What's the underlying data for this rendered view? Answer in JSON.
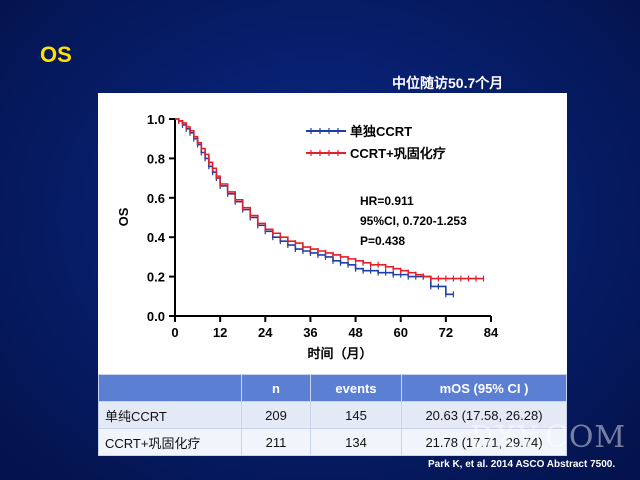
{
  "slide": {
    "title": "OS",
    "subtitle": "中位随访50.7个月",
    "footer": "Park K, et al. 2014 ASCO Abstract 7500.",
    "watermark": "DXY.COM"
  },
  "table": {
    "headers": [
      "",
      "n",
      "events",
      "mOS (95% CI )"
    ],
    "rows": [
      [
        "单纯CCRT",
        "209",
        "145",
        "20.63 (17.58, 26.28)"
      ],
      [
        "CCRT+巩固化疗",
        "211",
        "134",
        "21.78 (17.71, 29.74)"
      ]
    ]
  },
  "chart_data": {
    "type": "line",
    "title": "",
    "xlabel": "时间（月）",
    "ylabel": "OS",
    "xlim": [
      0,
      84
    ],
    "ylim": [
      0,
      1.0
    ],
    "xticks": [
      0,
      12,
      24,
      36,
      48,
      60,
      72,
      84
    ],
    "yticks": [
      "0.0",
      "0.2",
      "0.4",
      "0.6",
      "0.8",
      "1.0"
    ],
    "legend_position": "top-center",
    "annotations": [
      "HR=0.911",
      "95%CI, 0.720-1.253",
      "P=0.438"
    ],
    "series": [
      {
        "name": "单独CCRT",
        "color": "#1f3fa8",
        "x": [
          0,
          1,
          2,
          3,
          4,
          5,
          6,
          7,
          8,
          9,
          10,
          11,
          12,
          14,
          16,
          18,
          20,
          22,
          24,
          26,
          28,
          30,
          32,
          34,
          36,
          38,
          40,
          42,
          44,
          46,
          48,
          50,
          52,
          54,
          56,
          58,
          60,
          62,
          64,
          66,
          68,
          70,
          72,
          74
        ],
        "y": [
          1.0,
          0.99,
          0.97,
          0.95,
          0.93,
          0.9,
          0.87,
          0.83,
          0.8,
          0.76,
          0.73,
          0.7,
          0.66,
          0.62,
          0.58,
          0.54,
          0.5,
          0.46,
          0.43,
          0.4,
          0.38,
          0.36,
          0.34,
          0.33,
          0.32,
          0.31,
          0.3,
          0.28,
          0.27,
          0.26,
          0.24,
          0.23,
          0.23,
          0.22,
          0.22,
          0.21,
          0.21,
          0.2,
          0.2,
          0.2,
          0.15,
          0.15,
          0.11,
          0.11
        ]
      },
      {
        "name": "CCRT+巩固化疗",
        "color": "#e0202a",
        "x": [
          0,
          1,
          2,
          3,
          4,
          5,
          6,
          7,
          8,
          9,
          10,
          11,
          12,
          14,
          16,
          18,
          20,
          22,
          24,
          26,
          28,
          30,
          32,
          34,
          36,
          38,
          40,
          42,
          44,
          46,
          48,
          50,
          52,
          54,
          56,
          58,
          60,
          62,
          64,
          66,
          68,
          70,
          72,
          74,
          76,
          78,
          80,
          82
        ],
        "y": [
          1.0,
          0.99,
          0.98,
          0.96,
          0.94,
          0.91,
          0.88,
          0.85,
          0.82,
          0.78,
          0.75,
          0.71,
          0.67,
          0.63,
          0.59,
          0.55,
          0.51,
          0.47,
          0.44,
          0.42,
          0.4,
          0.38,
          0.37,
          0.35,
          0.34,
          0.33,
          0.32,
          0.31,
          0.3,
          0.29,
          0.28,
          0.27,
          0.26,
          0.26,
          0.25,
          0.24,
          0.23,
          0.22,
          0.21,
          0.2,
          0.19,
          0.19,
          0.19,
          0.19,
          0.19,
          0.19,
          0.19,
          0.19
        ]
      }
    ]
  }
}
